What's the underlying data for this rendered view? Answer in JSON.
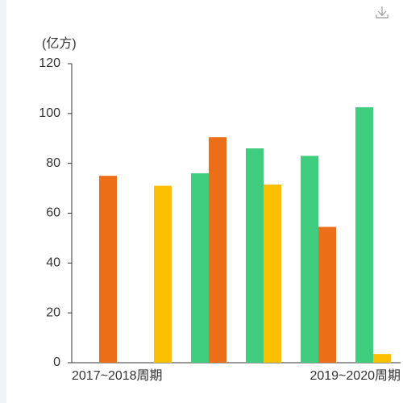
{
  "chart_data": {
    "type": "bar",
    "y_axis_label": "(亿方)",
    "categories": [
      "2017~2018周期",
      null,
      null,
      null,
      null,
      "2019~2020周期"
    ],
    "series": [
      {
        "color": "#41cd7f",
        "values": [
          null,
          null,
          76,
          86,
          83,
          102.5
        ]
      },
      {
        "colors": [
          "#ec6e19",
          "#fcc000",
          "#ec6e19",
          "#fcc000",
          "#ec6e19",
          "#fcc000"
        ],
        "values": [
          75,
          71,
          90.5,
          71.5,
          54.5,
          3.5
        ]
      }
    ],
    "ylim": [
      0,
      120
    ],
    "yticks": [
      0,
      20,
      40,
      60,
      80,
      100,
      120
    ],
    "grid": false
  }
}
